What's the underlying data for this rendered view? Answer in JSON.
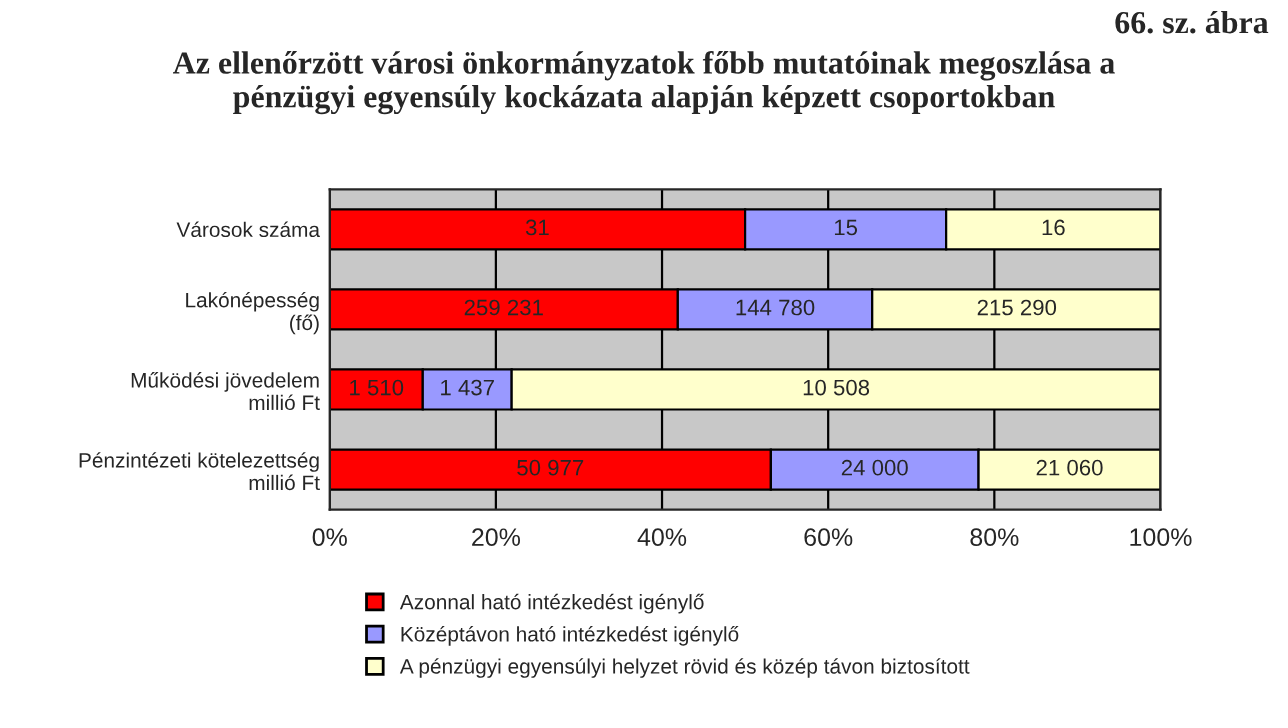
{
  "chart_data": {
    "type": "bar",
    "orientation": "horizontal",
    "stacked": true,
    "title": "Az ellenőrzött városi önkormányzatok főbb mutatóinak megoszlása a\npénzügyi egyensúly kockázata alapján képzett csoportokban",
    "annotations": [
      "66. sz. ábra",
      "31",
      "15",
      "16",
      "259 231",
      "144 780",
      "215 290",
      "1 510",
      "1 437",
      "10 508",
      "50 977",
      "24 000",
      "21 060"
    ],
    "categories": [
      "Városok száma",
      "Lakónépesség\n(fő)",
      "Működési jövedelem\nmillió Ft",
      "Pénzintézeti kötelezettség\nmillió Ft"
    ],
    "series": [
      {
        "name": "Azonnal ható intézkedést igénylő",
        "color": "#ff0000",
        "values": [
          50.0,
          41.9,
          11.2,
          53.1
        ]
      },
      {
        "name": "Középtávon ható intézkedést igénylő",
        "color": "#9999ff",
        "values": [
          24.2,
          23.4,
          10.7,
          25.0
        ]
      },
      {
        "name": "A pénzügyi egyensúlyi helyzet rövid és közép távon biztosított",
        "color": "#ffffcc",
        "values": [
          25.8,
          34.8,
          78.1,
          21.9
        ]
      }
    ],
    "xlim": [
      0,
      100
    ],
    "xticks": [
      {
        "value": 0,
        "label": "0%"
      },
      {
        "value": 20,
        "label": "20%"
      },
      {
        "value": 40,
        "label": "40%"
      },
      {
        "value": 60,
        "label": "60%"
      },
      {
        "value": 80,
        "label": "80%"
      },
      {
        "value": 100,
        "label": "100%"
      }
    ],
    "grid": "x",
    "legend": "bottom"
  }
}
